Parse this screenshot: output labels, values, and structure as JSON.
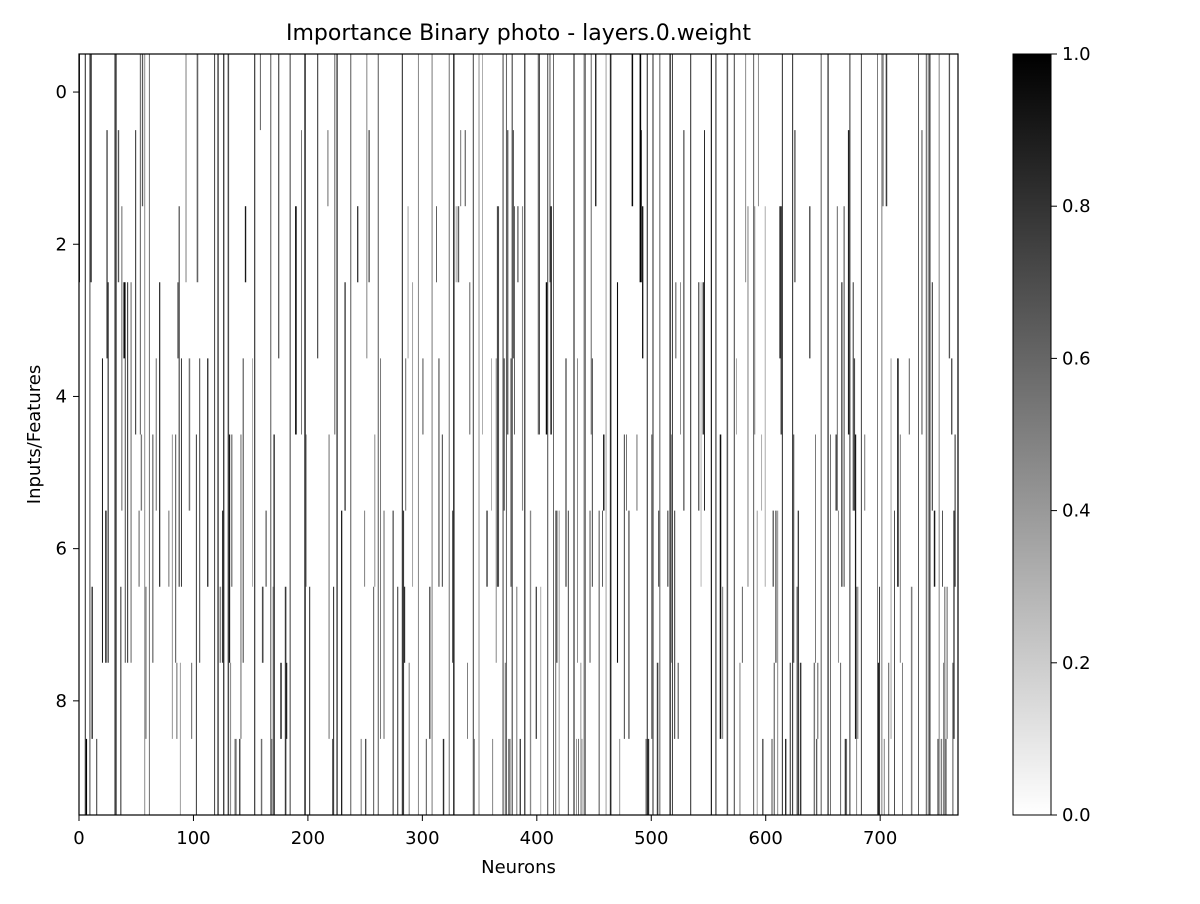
{
  "chart_data": {
    "type": "heatmap",
    "title": "Importance Binary photo - layers.0.weight",
    "xlabel": "Neurons",
    "ylabel": "Inputs/Features",
    "xlim": [
      0,
      768
    ],
    "ylim": [
      9.5,
      -0.5
    ],
    "x_ticks": [
      0,
      100,
      200,
      300,
      400,
      500,
      600,
      700
    ],
    "y_ticks": [
      0,
      2,
      4,
      6,
      8
    ],
    "colorbar": {
      "vmin": 0.0,
      "vmax": 1.0,
      "ticks": [
        "0.0",
        "0.2",
        "0.4",
        "0.6",
        "0.8",
        "1.0"
      ],
      "cmap": "gray_r",
      "low_color": "#ffffff",
      "high_color": "#000000"
    },
    "n_rows": 10,
    "n_cols": 768,
    "grid": false,
    "interpolation": "smooth",
    "aspect": "auto"
  }
}
